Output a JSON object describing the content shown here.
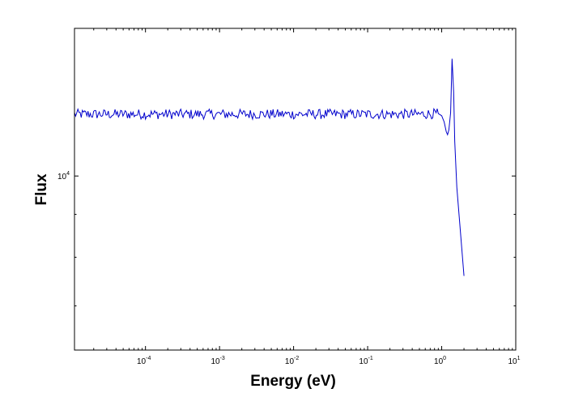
{
  "chart_data": {
    "type": "line",
    "title": "",
    "xlabel": "Energy (eV)",
    "ylabel": "Flux",
    "x_scale": "log",
    "y_scale": "log",
    "xlim": [
      1.1e-05,
      10
    ],
    "ylim": [
      6200,
      15000
    ],
    "grid": false,
    "x_ticks": [
      {
        "value": 0.0001,
        "base": "10",
        "exp": "-4"
      },
      {
        "value": 0.001,
        "base": "10",
        "exp": "-3"
      },
      {
        "value": 0.01,
        "base": "10",
        "exp": "-2"
      },
      {
        "value": 0.1,
        "base": "10",
        "exp": "-1"
      },
      {
        "value": 1,
        "base": "10",
        "exp": "0"
      },
      {
        "value": 10,
        "base": "10",
        "exp": "1"
      }
    ],
    "y_ticks": [
      {
        "value": 10000,
        "base": "10",
        "exp": "4"
      }
    ],
    "series": [
      {
        "color": "#0000cc",
        "noise_amplitude": 0.006,
        "x": [
          1.1e-05,
          0.0001,
          0.001,
          0.01,
          0.1,
          0.5,
          0.9,
          1.0,
          1.08,
          1.15,
          1.2,
          1.25,
          1.32,
          1.38,
          1.45,
          1.5,
          1.6,
          2.0
        ],
        "y": [
          11850,
          11850,
          11850,
          11850,
          11850,
          11850,
          11870,
          11800,
          11600,
          11300,
          11200,
          11350,
          11900,
          13800,
          12600,
          11000,
          9700,
          7600
        ]
      }
    ]
  }
}
